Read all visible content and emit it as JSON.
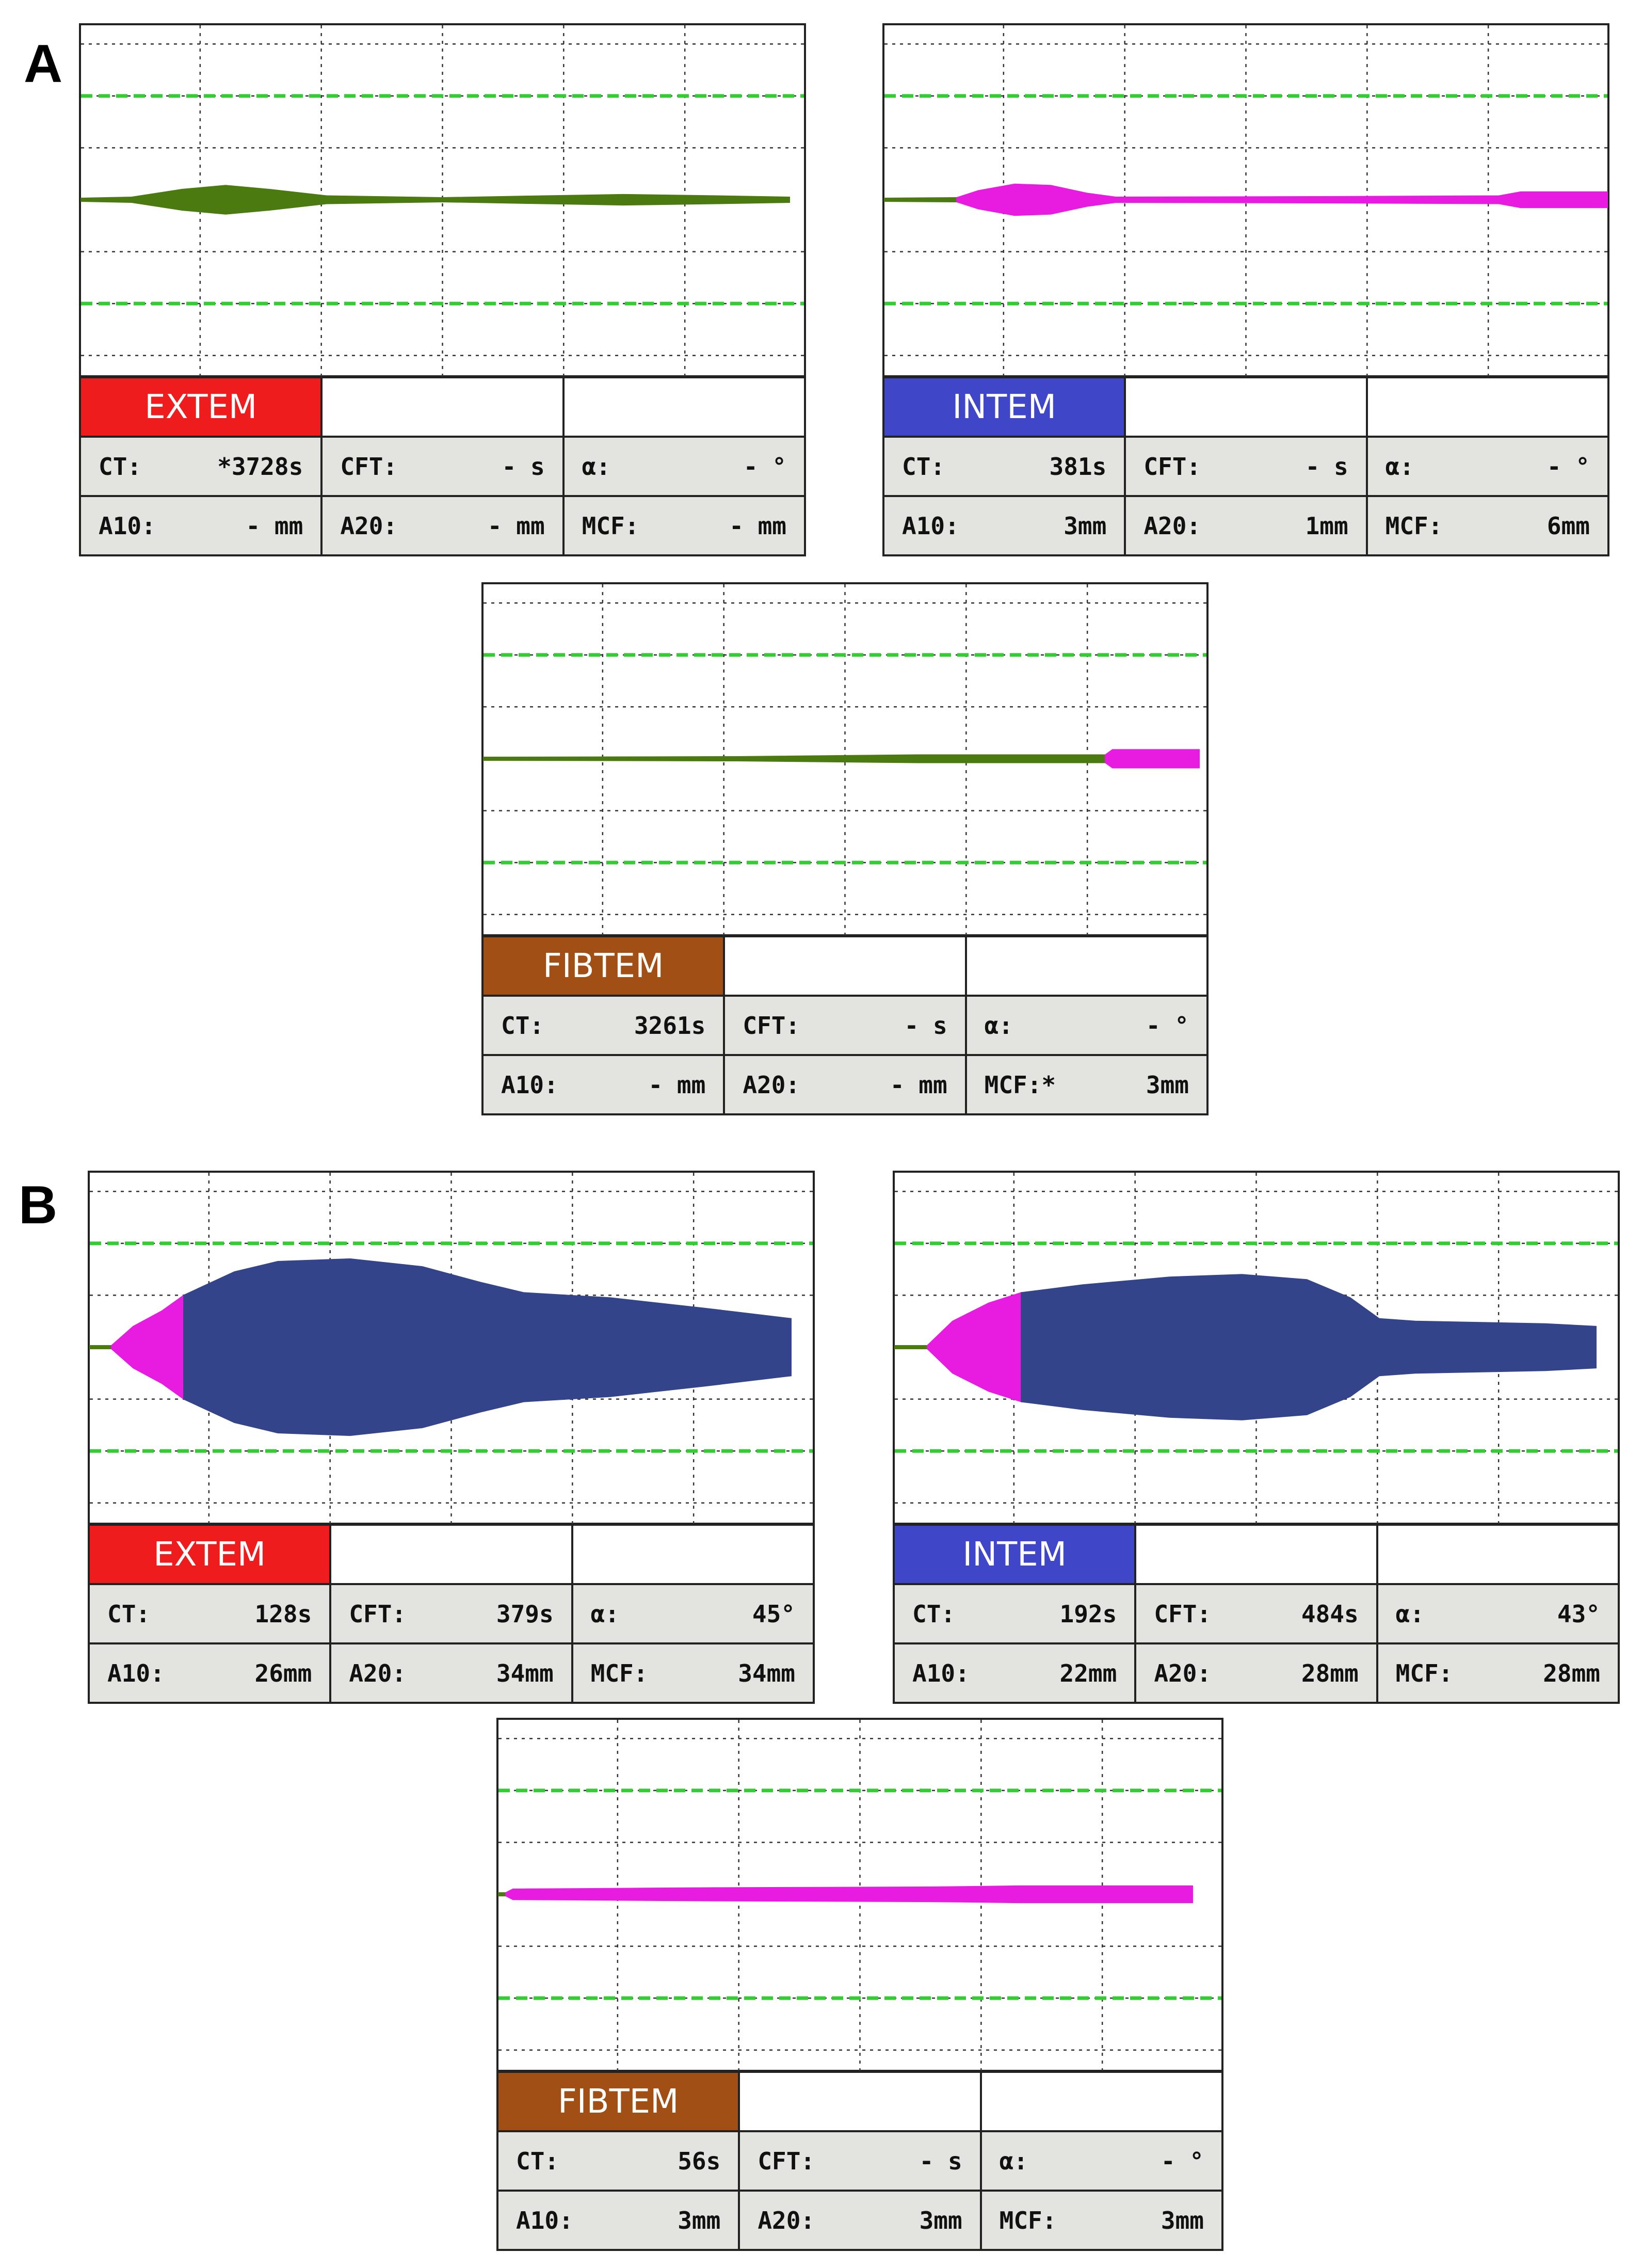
{
  "panels": [
    {
      "letter": "A"
    },
    {
      "letter": "B"
    }
  ],
  "chart_data": [
    {
      "type": "line",
      "panel": "A",
      "assay": "EXTEM",
      "assay_color": "#ee1c1c",
      "trace": {
        "pre_clot_color": "#4a7a10",
        "clot_color": "#4a7a10",
        "mcf_color": "#4a7a10",
        "pre_clot_end": 0.0,
        "clot_end": 0.0,
        "amplitude": [
          [
            0.0,
            0.5
          ],
          [
            0.07,
            1.0
          ],
          [
            0.14,
            4.0
          ],
          [
            0.2,
            5.5
          ],
          [
            0.26,
            4.0
          ],
          [
            0.34,
            1.5
          ],
          [
            0.5,
            0.8
          ],
          [
            0.64,
            1.5
          ],
          [
            0.75,
            2.0
          ],
          [
            0.88,
            1.5
          ],
          [
            0.98,
            1.0
          ]
        ]
      },
      "values": {
        "CT": "*3728s",
        "CFT": "- s",
        "alpha": "- °",
        "A10": "- mm",
        "A20": "- mm",
        "MCF": "- mm"
      }
    },
    {
      "type": "line",
      "panel": "A",
      "assay": "INTEM",
      "assay_color": "#3f47c8",
      "trace": {
        "pre_clot_color": "#4a7a10",
        "clot_color": "#e81be0",
        "mcf_color": "#e81be0",
        "pre_clot_end": 0.1,
        "clot_end": 1.0,
        "amplitude": [
          [
            0.0,
            0.5
          ],
          [
            0.1,
            0.8
          ],
          [
            0.13,
            3.5
          ],
          [
            0.18,
            6.0
          ],
          [
            0.23,
            5.5
          ],
          [
            0.28,
            2.5
          ],
          [
            0.32,
            1.0
          ],
          [
            0.6,
            1.2
          ],
          [
            0.85,
            1.5
          ],
          [
            0.88,
            3.0
          ],
          [
            1.0,
            3.0
          ]
        ]
      },
      "values": {
        "CT": "381s",
        "CFT": "- s",
        "alpha": "- °",
        "A10": "3mm",
        "A20": "1mm",
        "MCF": "6mm"
      }
    },
    {
      "type": "line",
      "panel": "A",
      "assay": "FIBTEM",
      "assay_color": "#a24f15",
      "trace": {
        "pre_clot_color": "#4a7a10",
        "clot_color": "#e81be0",
        "mcf_color": "#e81be0",
        "pre_clot_end": 0.86,
        "clot_end": 1.0,
        "amplitude": [
          [
            0.0,
            0.5
          ],
          [
            0.35,
            0.8
          ],
          [
            0.6,
            1.5
          ],
          [
            0.86,
            1.5
          ],
          [
            0.87,
            3.5
          ],
          [
            0.99,
            3.5
          ]
        ]
      },
      "values": {
        "CT": "3261s",
        "CFT": "- s",
        "alpha": "- °",
        "A10": "- mm",
        "A20": "- mm",
        "MCF": "3mm"
      },
      "mcf_marker": "*"
    },
    {
      "type": "line",
      "panel": "B",
      "assay": "EXTEM",
      "assay_color": "#ee1c1c",
      "trace": {
        "pre_clot_color": "#4a7a10",
        "clot_color": "#e81be0",
        "mcf_color": "#33448a",
        "pre_clot_end": 0.03,
        "clot_end": 0.13,
        "amplitude": [
          [
            0.0,
            0.5
          ],
          [
            0.03,
            0.5
          ],
          [
            0.06,
            8.0
          ],
          [
            0.1,
            14.0
          ],
          [
            0.13,
            20.0
          ],
          [
            0.2,
            29.0
          ],
          [
            0.26,
            33.0
          ],
          [
            0.36,
            34.0
          ],
          [
            0.46,
            31.0
          ],
          [
            0.54,
            25.0
          ],
          [
            0.6,
            21.0
          ],
          [
            0.72,
            19.0
          ],
          [
            0.85,
            15.0
          ],
          [
            0.97,
            11.0
          ],
          [
            0.97,
            0.5
          ]
        ]
      },
      "values": {
        "CT": "128s",
        "CFT": "379s",
        "alpha": "45°",
        "A10": "26mm",
        "A20": "34mm",
        "MCF": "34mm"
      }
    },
    {
      "type": "line",
      "panel": "B",
      "assay": "INTEM",
      "assay_color": "#3f47c8",
      "trace": {
        "pre_clot_color": "#4a7a10",
        "clot_color": "#e81be0",
        "mcf_color": "#33448a",
        "pre_clot_end": 0.045,
        "clot_end": 0.175,
        "amplitude": [
          [
            0.0,
            0.5
          ],
          [
            0.045,
            0.5
          ],
          [
            0.08,
            10.0
          ],
          [
            0.13,
            17.0
          ],
          [
            0.175,
            21.0
          ],
          [
            0.26,
            24.0
          ],
          [
            0.38,
            27.0
          ],
          [
            0.48,
            28.0
          ],
          [
            0.57,
            26.0
          ],
          [
            0.63,
            19.0
          ],
          [
            0.67,
            11.0
          ],
          [
            0.72,
            10.0
          ],
          [
            0.9,
            9.0
          ],
          [
            0.97,
            8.0
          ],
          [
            0.97,
            0.5
          ]
        ]
      },
      "values": {
        "CT": "192s",
        "CFT": "484s",
        "alpha": "43°",
        "A10": "22mm",
        "A20": "28mm",
        "MCF": "28mm"
      }
    },
    {
      "type": "line",
      "panel": "B",
      "assay": "FIBTEM",
      "assay_color": "#a24f15",
      "trace": {
        "pre_clot_color": "#4a7a10",
        "clot_color": "#e81be0",
        "mcf_color": "#e81be0",
        "pre_clot_end": 0.01,
        "clot_end": 1.0,
        "amplitude": [
          [
            0.0,
            0.5
          ],
          [
            0.01,
            0.5
          ],
          [
            0.02,
            2.0
          ],
          [
            0.3,
            2.5
          ],
          [
            0.6,
            2.8
          ],
          [
            0.72,
            3.2
          ],
          [
            0.96,
            3.2
          ],
          [
            0.96,
            0.5
          ]
        ]
      },
      "values": {
        "CT": "56s",
        "CFT": "- s",
        "alpha": "- °",
        "A10": "3mm",
        "A20": "3mm",
        "MCF": "3mm"
      }
    }
  ],
  "labels": {
    "CT": "CT:",
    "CFT": "CFT:",
    "alpha": "α:",
    "A10": "A10:",
    "A20": "A20:",
    "MCF": "MCF:"
  }
}
